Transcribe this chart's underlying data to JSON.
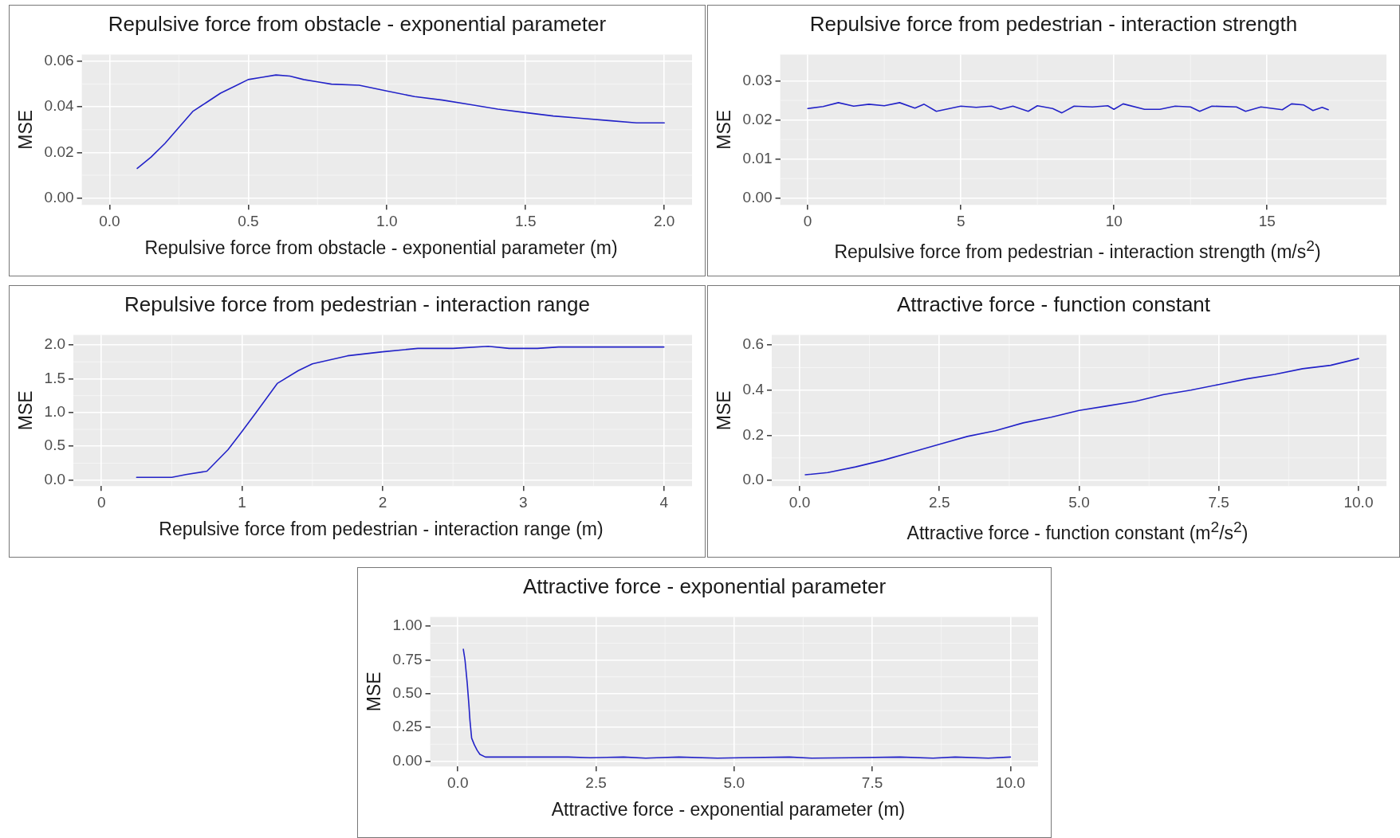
{
  "chart_data": [
    {
      "type": "line",
      "title": "Repulsive force from obstacle - exponential parameter",
      "xlabel": "Repulsive force from obstacle - exponential parameter (m)",
      "ylabel": "MSE",
      "grid": true,
      "x": [
        0.1,
        0.15,
        0.2,
        0.25,
        0.3,
        0.35,
        0.4,
        0.45,
        0.5,
        0.55,
        0.6,
        0.65,
        0.7,
        0.75,
        0.8,
        0.9,
        1.0,
        1.1,
        1.2,
        1.3,
        1.4,
        1.5,
        1.6,
        1.7,
        1.8,
        1.9,
        2.0
      ],
      "series": [
        {
          "color": "#2323c8",
          "values": [
            0.013,
            0.018,
            0.024,
            0.031,
            0.038,
            0.042,
            0.046,
            0.049,
            0.052,
            0.053,
            0.054,
            0.0535,
            0.052,
            0.051,
            0.05,
            0.0495,
            0.047,
            0.0445,
            0.043,
            0.041,
            0.039,
            0.0375,
            0.036,
            0.035,
            0.034,
            0.033,
            0.033
          ]
        }
      ],
      "xlim": [
        -0.1,
        2.1
      ],
      "xticks": [
        {
          "value": 0,
          "label": "0.0"
        },
        {
          "value": 0.5,
          "label": "0.5"
        },
        {
          "value": 1,
          "label": "1.0"
        },
        {
          "value": 1.5,
          "label": "1.5"
        },
        {
          "value": 2,
          "label": "2.0"
        }
      ],
      "ylim": [
        -0.003,
        0.063
      ],
      "yticks": [
        {
          "value": 0,
          "label": "0.00"
        },
        {
          "value": 0.02,
          "label": "0.02"
        },
        {
          "value": 0.04,
          "label": "0.04"
        },
        {
          "value": 0.06,
          "label": "0.06"
        }
      ]
    },
    {
      "type": "line",
      "title": "Repulsive force from pedestrian - interaction strength",
      "xlabel": "Repulsive force from pedestrian - interaction strength (m/s$^{2}$)",
      "ylabel": "MSE",
      "grid": true,
      "x": [
        0,
        0.5,
        1,
        1.5,
        2,
        2.5,
        3,
        3.5,
        3.8,
        4.2,
        5,
        5.5,
        6,
        6.3,
        6.7,
        7.2,
        7.5,
        8,
        8.3,
        8.7,
        9.3,
        9.8,
        10,
        10.3,
        11,
        11.5,
        12,
        12.5,
        12.8,
        13.2,
        14,
        14.3,
        14.8,
        15.5,
        15.8,
        16.2,
        16.5,
        16.8,
        17
      ],
      "series": [
        {
          "color": "#2323c8",
          "values": [
            0.0229,
            0.0234,
            0.0244,
            0.0235,
            0.024,
            0.0236,
            0.0244,
            0.023,
            0.024,
            0.0222,
            0.0235,
            0.0232,
            0.0235,
            0.0227,
            0.0235,
            0.0222,
            0.0236,
            0.0229,
            0.0218,
            0.0235,
            0.0233,
            0.0236,
            0.0227,
            0.0241,
            0.0227,
            0.0227,
            0.0235,
            0.0233,
            0.0222,
            0.0235,
            0.0233,
            0.0222,
            0.0233,
            0.0226,
            0.0241,
            0.0238,
            0.0224,
            0.0232,
            0.0226
          ]
        }
      ],
      "xlim": [
        -0.9,
        18.9
      ],
      "xticks": [
        0,
        5,
        10,
        15
      ],
      "ylim": [
        -0.0017,
        0.0367
      ],
      "yticks": [
        {
          "value": 0,
          "label": "0.00"
        },
        {
          "value": 0.01,
          "label": "0.01"
        },
        {
          "value": 0.02,
          "label": "0.02"
        },
        {
          "value": 0.03,
          "label": "0.03"
        }
      ]
    },
    {
      "type": "line",
      "title": "Repulsive force from pedestrian - interaction range",
      "xlabel": "Repulsive force from pedestrian - interaction range (m)",
      "ylabel": "MSE",
      "grid": true,
      "x": [
        0.25,
        0.5,
        0.6,
        0.75,
        0.9,
        1.0,
        1.1,
        1.25,
        1.4,
        1.5,
        1.75,
        2,
        2.25,
        2.5,
        2.75,
        2.9,
        3.1,
        3.25,
        3.5,
        4
      ],
      "series": [
        {
          "color": "#2323c8",
          "values": [
            0.04,
            0.04,
            0.08,
            0.13,
            0.45,
            0.72,
            1.0,
            1.43,
            1.62,
            1.72,
            1.84,
            1.9,
            1.95,
            1.95,
            1.98,
            1.95,
            1.95,
            1.97,
            1.97,
            1.97
          ]
        }
      ],
      "xlim": [
        -0.2,
        4.2
      ],
      "xticks": [
        0,
        1,
        2,
        3,
        4
      ],
      "ylim": [
        -0.09,
        2.15
      ],
      "yticks": [
        {
          "value": 0,
          "label": "0.0"
        },
        {
          "value": 0.5,
          "label": "0.5"
        },
        {
          "value": 1,
          "label": "1.0"
        },
        {
          "value": 1.5,
          "label": "1.5"
        },
        {
          "value": 2,
          "label": "2.0"
        }
      ]
    },
    {
      "type": "line",
      "title": "Attractive force - function constant",
      "xlabel": "Attractive force - function constant (m$^{2}$/s$^{2}$)",
      "ylabel": "MSE",
      "grid": true,
      "x": [
        0.1,
        0.5,
        1,
        1.5,
        2,
        2.5,
        3,
        3.5,
        4,
        4.5,
        5,
        5.5,
        6,
        6.5,
        7,
        7.5,
        8,
        8.5,
        9,
        9.5,
        10
      ],
      "series": [
        {
          "color": "#2323c8",
          "values": [
            0.025,
            0.035,
            0.06,
            0.09,
            0.125,
            0.16,
            0.195,
            0.22,
            0.255,
            0.28,
            0.31,
            0.33,
            0.35,
            0.38,
            0.4,
            0.425,
            0.45,
            0.47,
            0.495,
            0.51,
            0.54
          ]
        }
      ],
      "xlim": [
        -0.5,
        10.5
      ],
      "xticks": [
        {
          "value": 0,
          "label": "0.0"
        },
        {
          "value": 2.5,
          "label": "2.5"
        },
        {
          "value": 5,
          "label": "5.0"
        },
        {
          "value": 7.5,
          "label": "7.5"
        },
        {
          "value": 10,
          "label": "10.0"
        }
      ],
      "ylim": [
        -0.025,
        0.645
      ],
      "yticks": [
        {
          "value": 0,
          "label": "0.0"
        },
        {
          "value": 0.2,
          "label": "0.2"
        },
        {
          "value": 0.4,
          "label": "0.4"
        },
        {
          "value": 0.6,
          "label": "0.6"
        }
      ]
    },
    {
      "type": "line",
      "title": "Attractive force - exponential parameter",
      "xlabel": "Attractive force - exponential parameter (m)",
      "ylabel": "MSE",
      "grid": true,
      "x": [
        0.1,
        0.13,
        0.17,
        0.2,
        0.22,
        0.25,
        0.3,
        0.35,
        0.4,
        0.5,
        1,
        2,
        2.4,
        3,
        3.4,
        3.6,
        4,
        4.7,
        5.1,
        6,
        6.4,
        7.1,
        8,
        8.6,
        9,
        9.6,
        10
      ],
      "series": [
        {
          "color": "#2323c8",
          "values": [
            0.83,
            0.75,
            0.58,
            0.42,
            0.3,
            0.17,
            0.12,
            0.08,
            0.05,
            0.03,
            0.03,
            0.03,
            0.025,
            0.03,
            0.022,
            0.025,
            0.03,
            0.022,
            0.025,
            0.03,
            0.022,
            0.025,
            0.03,
            0.022,
            0.03,
            0.022,
            0.03
          ]
        }
      ],
      "xlim": [
        -0.5,
        10.5
      ],
      "xticks": [
        {
          "value": 0,
          "label": "0.0"
        },
        {
          "value": 2.5,
          "label": "2.5"
        },
        {
          "value": 5,
          "label": "5.0"
        },
        {
          "value": 7.5,
          "label": "7.5"
        },
        {
          "value": 10,
          "label": "10.0"
        }
      ],
      "ylim": [
        -0.04,
        1.07
      ],
      "yticks": [
        {
          "value": 0,
          "label": "0.00"
        },
        {
          "value": 0.25,
          "label": "0.25"
        },
        {
          "value": 0.5,
          "label": "0.50"
        },
        {
          "value": 0.75,
          "label": "0.75"
        },
        {
          "value": 1,
          "label": "1.00"
        }
      ]
    }
  ]
}
